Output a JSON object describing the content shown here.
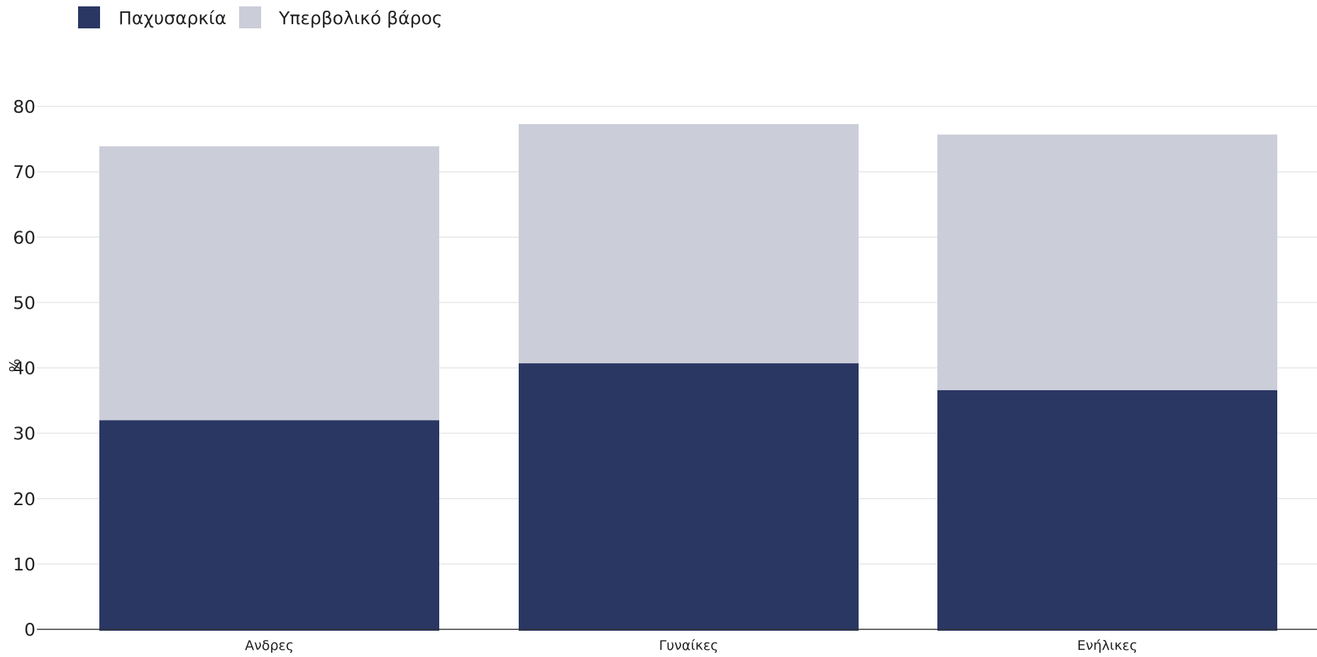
{
  "chart_data": {
    "type": "bar",
    "stacked": true,
    "categories": [
      "Ανδρες",
      "Γυναίκες",
      "Ενήλικες"
    ],
    "series": [
      {
        "name": "Παχυσαρκία",
        "values": [
          32.0,
          40.7,
          36.6
        ],
        "color": "#2a3763"
      },
      {
        "name": "Υπερβολικό βάρος",
        "values": [
          41.9,
          36.6,
          39.1
        ],
        "color": "#cbcdd9"
      }
    ],
    "title": "",
    "xlabel": "",
    "ylabel": "%",
    "ylim": [
      0,
      80
    ],
    "yticks": [
      0,
      10,
      20,
      30,
      40,
      50,
      60,
      70,
      80
    ],
    "grid": true,
    "legend_position": "top-left"
  }
}
